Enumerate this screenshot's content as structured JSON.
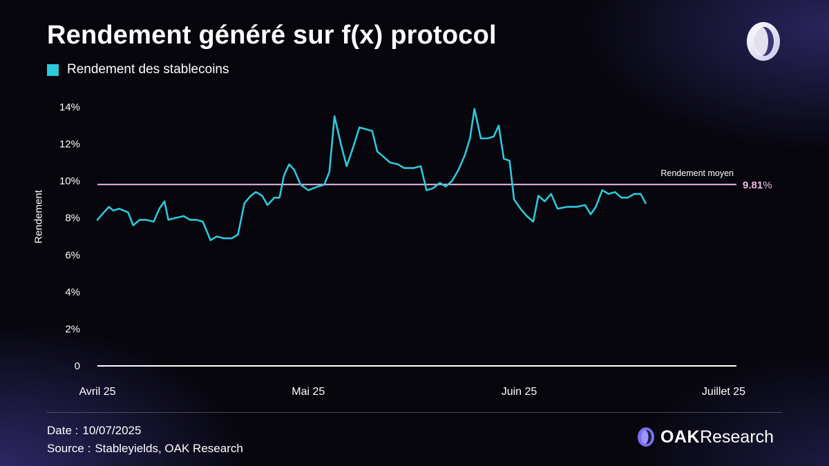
{
  "colors": {
    "series": "#2ec9dc",
    "average": "#f1b8ec",
    "text": "#ffffff",
    "accent": "#6f63e0"
  },
  "header": {
    "title": "Rendement généré sur f(x) protocol",
    "legend_label": "Rendement des stablecoins"
  },
  "footer": {
    "date_label": "Date :",
    "date_value": "10/07/2025",
    "source_label": "Source :",
    "source_value": "Stableyields, OAK Research",
    "brand_bold": "OAK",
    "brand_light": "Research"
  },
  "icons": {
    "top_logo": "oak-ring-logo-icon",
    "brand_logo": "oak-ring-logo-icon"
  },
  "chart_data": {
    "type": "line",
    "title": "Rendement généré sur f(x) protocol",
    "ylabel": "Rendement",
    "xlabel": "",
    "ylim": [
      0,
      14
    ],
    "yticks": [
      {
        "value": 0,
        "label": "0"
      },
      {
        "value": 2,
        "label": "2%"
      },
      {
        "value": 4,
        "label": "4%"
      },
      {
        "value": 6,
        "label": "6%"
      },
      {
        "value": 8,
        "label": "8%"
      },
      {
        "value": 10,
        "label": "10%"
      },
      {
        "value": 12,
        "label": "12%"
      },
      {
        "value": 14,
        "label": "14%"
      }
    ],
    "xlim": [
      0,
      100
    ],
    "xticks": [
      {
        "value": 0,
        "label": "Avril 25"
      },
      {
        "value": 33,
        "label": "Mai 25"
      },
      {
        "value": 66,
        "label": "Juin 25"
      },
      {
        "value": 98,
        "label": "Juillet 25"
      }
    ],
    "grid": false,
    "legend": "top-left",
    "average": {
      "label": "Rendement moyen",
      "value": 9.81,
      "display_number": "9.81",
      "display_unit": "%"
    },
    "series": [
      {
        "name": "Rendement des stablecoins",
        "points": [
          [
            0,
            7.9
          ],
          [
            1,
            8.3
          ],
          [
            1.8,
            8.6
          ],
          [
            2.5,
            8.4
          ],
          [
            3.4,
            8.5
          ],
          [
            4.8,
            8.3
          ],
          [
            5.6,
            7.6
          ],
          [
            6.6,
            7.9
          ],
          [
            7.6,
            7.9
          ],
          [
            8.8,
            7.8
          ],
          [
            9.7,
            8.5
          ],
          [
            10.5,
            8.9
          ],
          [
            11.1,
            7.9
          ],
          [
            12.2,
            8.0
          ],
          [
            13.5,
            8.1
          ],
          [
            14.5,
            7.9
          ],
          [
            15.5,
            7.9
          ],
          [
            16.5,
            7.8
          ],
          [
            17.7,
            6.8
          ],
          [
            18.7,
            7.0
          ],
          [
            19.8,
            6.9
          ],
          [
            21,
            6.9
          ],
          [
            22,
            7.1
          ],
          [
            23,
            8.8
          ],
          [
            24,
            9.2
          ],
          [
            24.8,
            9.4
          ],
          [
            25.8,
            9.2
          ],
          [
            26.6,
            8.7
          ],
          [
            27.7,
            9.1
          ],
          [
            28.5,
            9.1
          ],
          [
            29.2,
            10.3
          ],
          [
            30,
            10.9
          ],
          [
            30.8,
            10.6
          ],
          [
            31.8,
            9.8
          ],
          [
            33,
            9.5
          ],
          [
            34.5,
            9.7
          ],
          [
            35.5,
            9.8
          ],
          [
            36.3,
            10.5
          ],
          [
            37.1,
            13.5
          ],
          [
            38.1,
            12.0
          ],
          [
            39,
            10.8
          ],
          [
            40,
            11.8
          ],
          [
            41,
            12.9
          ],
          [
            42,
            12.8
          ],
          [
            43,
            12.7
          ],
          [
            43.8,
            11.6
          ],
          [
            44.8,
            11.3
          ],
          [
            45.8,
            11.0
          ],
          [
            47,
            10.9
          ],
          [
            48,
            10.7
          ],
          [
            49.5,
            10.7
          ],
          [
            50.6,
            10.8
          ],
          [
            51.5,
            9.5
          ],
          [
            52.5,
            9.6
          ],
          [
            53.6,
            9.9
          ],
          [
            54.5,
            9.7
          ],
          [
            55.5,
            10.0
          ],
          [
            56.5,
            10.6
          ],
          [
            57.5,
            11.4
          ],
          [
            58.3,
            12.3
          ],
          [
            59,
            13.9
          ],
          [
            60,
            12.3
          ],
          [
            61,
            12.3
          ],
          [
            62,
            12.4
          ],
          [
            62.8,
            13.0
          ],
          [
            63.6,
            11.2
          ],
          [
            64.5,
            11.1
          ],
          [
            65.2,
            9.0
          ],
          [
            66.2,
            8.5
          ],
          [
            67.2,
            8.1
          ],
          [
            68.2,
            7.8
          ],
          [
            69,
            9.2
          ],
          [
            70,
            8.9
          ],
          [
            71,
            9.3
          ],
          [
            72,
            8.5
          ],
          [
            73.5,
            8.6
          ],
          [
            75,
            8.6
          ],
          [
            76.3,
            8.7
          ],
          [
            77.2,
            8.2
          ],
          [
            78,
            8.6
          ],
          [
            79,
            9.5
          ],
          [
            80,
            9.3
          ],
          [
            81,
            9.4
          ],
          [
            82,
            9.1
          ],
          [
            83,
            9.1
          ],
          [
            84,
            9.3
          ],
          [
            85,
            9.3
          ],
          [
            85.8,
            8.8
          ]
        ]
      }
    ]
  }
}
